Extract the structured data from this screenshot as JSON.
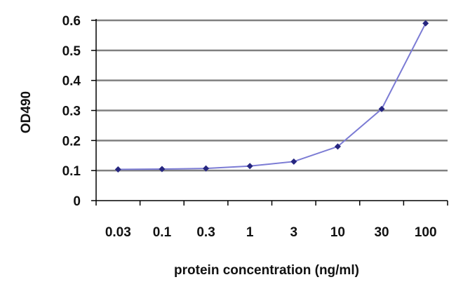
{
  "chart_data": {
    "type": "line",
    "title": "",
    "xlabel": "protein concentration (ng/ml)",
    "ylabel": "OD490",
    "categories": [
      "0.03",
      "0.1",
      "0.3",
      "1",
      "3",
      "10",
      "30",
      "100"
    ],
    "series": [
      {
        "values": [
          0.104,
          0.105,
          0.107,
          0.115,
          0.13,
          0.18,
          0.305,
          0.59
        ]
      }
    ],
    "y_ticks": [
      "0",
      "0.1",
      "0.2",
      "0.3",
      "0.4",
      "0.5",
      "0.6"
    ],
    "ylim": [
      0,
      0.6
    ],
    "grid": true,
    "legend": false,
    "colors": {
      "line": "#7b7bd4",
      "marker": "#262680",
      "grid": "#808080",
      "axis": "#000000"
    }
  }
}
